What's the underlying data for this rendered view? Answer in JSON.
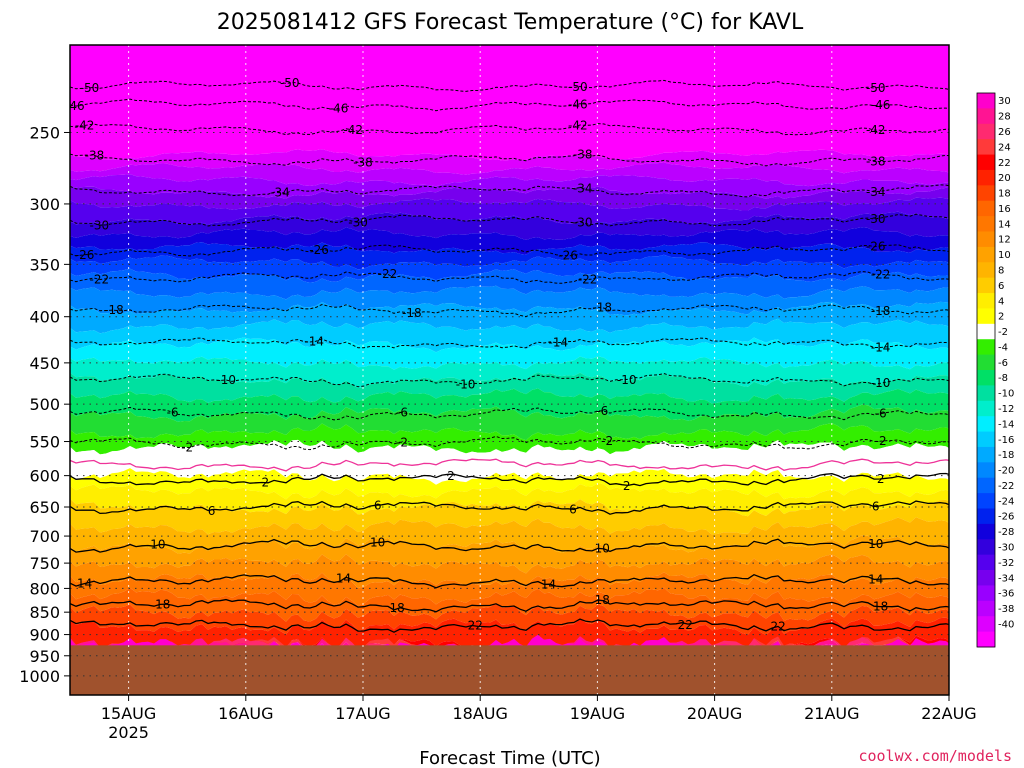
{
  "chart_data": {
    "type": "heatmap",
    "title": "2025081412 GFS Forecast Temperature (°C) for KAVL",
    "xlabel": "Forecast Time (UTC)",
    "ylabel": "",
    "credit": "coolwx.com/models",
    "x_range": [
      "2025-08-14T12",
      "2025-08-22T00"
    ],
    "x_ticks": [
      {
        "label": "15AUG",
        "sub": "2025",
        "t": "2025-08-15T00"
      },
      {
        "label": "16AUG",
        "sub": "",
        "t": "2025-08-16T00"
      },
      {
        "label": "17AUG",
        "sub": "",
        "t": "2025-08-17T00"
      },
      {
        "label": "18AUG",
        "sub": "",
        "t": "2025-08-18T00"
      },
      {
        "label": "19AUG",
        "sub": "",
        "t": "2025-08-19T00"
      },
      {
        "label": "20AUG",
        "sub": "",
        "t": "2025-08-20T00"
      },
      {
        "label": "21AUG",
        "sub": "",
        "t": "2025-08-21T00"
      },
      {
        "label": "22AUG",
        "sub": "",
        "t": "2025-08-22T00"
      }
    ],
    "y_axis": {
      "scale": "log",
      "inverted": true,
      "range_hpa": [
        1050,
        200
      ]
    },
    "y_ticks": [
      1000,
      950,
      900,
      850,
      800,
      750,
      700,
      650,
      600,
      550,
      500,
      450,
      400,
      350,
      300,
      250
    ],
    "ground_below_hpa": 925,
    "ground_color": "#a0522d",
    "grid": true,
    "colorbar": {
      "placement": "right",
      "levels": [
        "30",
        "28",
        "26",
        "24",
        "22",
        "20",
        "18",
        "16",
        "14",
        "12",
        "10",
        "8",
        "6",
        "4",
        "2",
        "-2",
        "-4",
        "-6",
        "-8",
        "-10",
        "-12",
        "-14",
        "-16",
        "-18",
        "-20",
        "-22",
        "-24",
        "-26",
        "-28",
        "-30",
        "-32",
        "-34",
        "-36",
        "-38",
        "-40"
      ],
      "colors": [
        "#ff00cc",
        "#ff1493",
        "#ff2a70",
        "#ff3a3a",
        "#ff0000",
        "#ff2200",
        "#ff4400",
        "#ff6600",
        "#ff7700",
        "#ff8c00",
        "#ffa200",
        "#ffb400",
        "#ffcc00",
        "#ffee00",
        "#ffff00",
        "#ffffff",
        "#33ee00",
        "#22dd33",
        "#00e066",
        "#00e0a0",
        "#00eecc",
        "#00eeff",
        "#00ccff",
        "#00aaff",
        "#0088ff",
        "#0066ff",
        "#0044ff",
        "#0022ee",
        "#1100dd",
        "#3300dd",
        "#5500ee",
        "#7700ee",
        "#9900ff",
        "#bb00ff",
        "#dd00ff",
        "#ff00ff"
      ]
    },
    "profile": [
      {
        "p": 215,
        "t": -53
      },
      {
        "p": 230,
        "t": -49
      },
      {
        "p": 250,
        "t": -43
      },
      {
        "p": 270,
        "t": -39
      },
      {
        "p": 300,
        "t": -32
      },
      {
        "p": 330,
        "t": -27
      },
      {
        "p": 360,
        "t": -22
      },
      {
        "p": 400,
        "t": -17
      },
      {
        "p": 450,
        "t": -12
      },
      {
        "p": 500,
        "t": -7
      },
      {
        "p": 550,
        "t": -3
      },
      {
        "p": 575,
        "t": 0
      },
      {
        "p": 600,
        "t": 2
      },
      {
        "p": 650,
        "t": 6
      },
      {
        "p": 700,
        "t": 9
      },
      {
        "p": 750,
        "t": 12
      },
      {
        "p": 800,
        "t": 15
      },
      {
        "p": 850,
        "t": 18
      },
      {
        "p": 880,
        "t": 20
      },
      {
        "p": 900,
        "t": 21
      },
      {
        "p": 925,
        "t": 22
      }
    ],
    "contours": [
      {
        "value": -50,
        "p": 222,
        "style": "dashed",
        "color": "#000000",
        "label": "-50",
        "labels_at": [
          "2025-08-14T16",
          "2025-08-16T09",
          "2025-08-18T20",
          "2025-08-21T09"
        ]
      },
      {
        "value": -46,
        "p": 233,
        "style": "dashed",
        "color": "#000000",
        "label": "-46",
        "labels_at": [
          "2025-08-14T13",
          "2025-08-16T19",
          "2025-08-18T20",
          "2025-08-21T10"
        ]
      },
      {
        "value": -42,
        "p": 248,
        "style": "dashed",
        "color": "#000000",
        "label": "-42",
        "labels_at": [
          "2025-08-14T15",
          "2025-08-16T22",
          "2025-08-18T20",
          "2025-08-21T09"
        ]
      },
      {
        "value": -38,
        "p": 268,
        "style": "dashed",
        "color": "#000000",
        "label": "-38",
        "labels_at": [
          "2025-08-14T17",
          "2025-08-17T00",
          "2025-08-18T21",
          "2025-08-21T09"
        ]
      },
      {
        "value": -34,
        "p": 290,
        "style": "dashed",
        "color": "#000000",
        "label": "-34",
        "labels_at": [
          "2025-08-16T07",
          "2025-08-18T21",
          "2025-08-21T09"
        ]
      },
      {
        "value": -30,
        "p": 313,
        "style": "dashed",
        "color": "#000000",
        "label": "-30",
        "labels_at": [
          "2025-08-14T18",
          "2025-08-16T23",
          "2025-08-18T21",
          "2025-08-21T09"
        ]
      },
      {
        "value": -26,
        "p": 338,
        "style": "dashed",
        "color": "#000000",
        "label": "-26",
        "labels_at": [
          "2025-08-14T15",
          "2025-08-16T15",
          "2025-08-18T18",
          "2025-08-21T09"
        ]
      },
      {
        "value": -22,
        "p": 362,
        "style": "dashed",
        "color": "#000000",
        "label": "-22",
        "labels_at": [
          "2025-08-14T18",
          "2025-08-17T05",
          "2025-08-18T22",
          "2025-08-21T10"
        ]
      },
      {
        "value": -18,
        "p": 393,
        "style": "dashed",
        "color": "#000000",
        "label": "-18",
        "labels_at": [
          "2025-08-14T21",
          "2025-08-17T10",
          "2025-08-19T01",
          "2025-08-21T10"
        ]
      },
      {
        "value": -14,
        "p": 428,
        "style": "dashed",
        "color": "#000000",
        "label": "-14",
        "labels_at": [
          "2025-08-16T14",
          "2025-08-18T16",
          "2025-08-21T10"
        ]
      },
      {
        "value": -10,
        "p": 470,
        "style": "dashed",
        "color": "#000000",
        "label": "-10",
        "labels_at": [
          "2025-08-15T20",
          "2025-08-17T21",
          "2025-08-19T06",
          "2025-08-21T10"
        ]
      },
      {
        "value": -6,
        "p": 512,
        "style": "dashed",
        "color": "#000000",
        "label": "-6",
        "labels_at": [
          "2025-08-15T09",
          "2025-08-17T08",
          "2025-08-19T01",
          "2025-08-21T10"
        ]
      },
      {
        "value": -2,
        "p": 552,
        "style": "dashed",
        "color": "#000000",
        "label": "-2",
        "labels_at": [
          "2025-08-15T12",
          "2025-08-17T08",
          "2025-08-19T02",
          "2025-08-21T10"
        ]
      },
      {
        "value": 0,
        "p": 583,
        "style": "solid",
        "color": "#ee3399",
        "label": "",
        "labels_at": []
      },
      {
        "value": 2,
        "p": 606,
        "style": "solid",
        "color": "#000000",
        "label": "2",
        "labels_at": [
          "2025-08-16T04",
          "2025-08-17T18",
          "2025-08-19T06",
          "2025-08-21T10"
        ]
      },
      {
        "value": 6,
        "p": 650,
        "style": "solid",
        "color": "#000000",
        "label": "6",
        "labels_at": [
          "2025-08-15T17",
          "2025-08-17T03",
          "2025-08-18T19",
          "2025-08-21T09"
        ]
      },
      {
        "value": 10,
        "p": 718,
        "style": "solid",
        "color": "#000000",
        "label": "10",
        "labels_at": [
          "2025-08-15T06",
          "2025-08-17T03",
          "2025-08-19T01",
          "2025-08-21T09"
        ]
      },
      {
        "value": 14,
        "p": 785,
        "style": "solid",
        "color": "#000000",
        "label": "14",
        "labels_at": [
          "2025-08-14T15",
          "2025-08-16T20",
          "2025-08-18T14",
          "2025-08-21T09"
        ]
      },
      {
        "value": 18,
        "p": 835,
        "style": "solid",
        "color": "#000000",
        "label": "18",
        "labels_at": [
          "2025-08-15T07",
          "2025-08-17T07",
          "2025-08-19T01",
          "2025-08-21T10"
        ]
      },
      {
        "value": 22,
        "p": 880,
        "style": "solid",
        "color": "#000000",
        "label": "22",
        "labels_at": [
          "2025-08-17T23",
          "2025-08-19T18",
          "2025-08-20T13"
        ]
      }
    ]
  }
}
